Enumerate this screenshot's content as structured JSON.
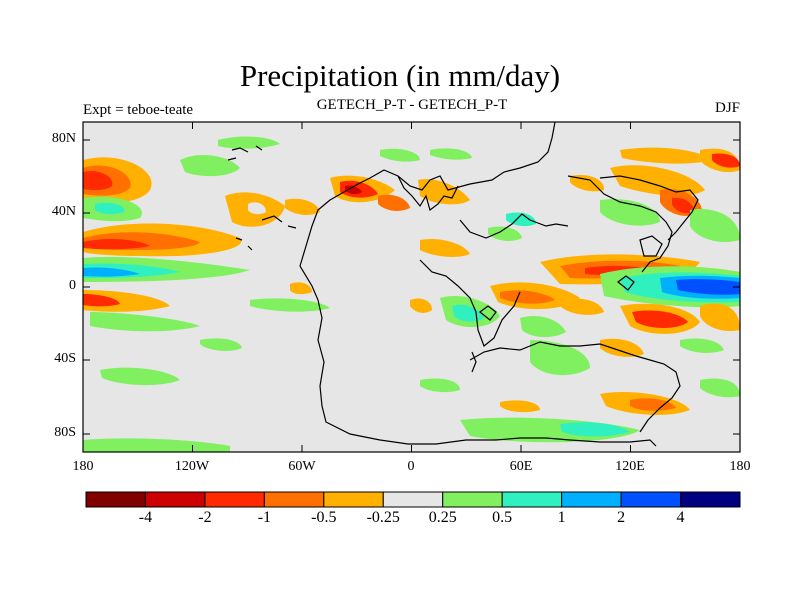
{
  "title": "Precipitation (in mm/day)",
  "left_label": "Expt = teboe-teate",
  "center_label": "GETECH_P-T - GETECH_P-T",
  "right_label": "DJF",
  "map": {
    "background_color": "#e6e6e6",
    "lat_ticks": [
      "80N",
      "40N",
      "0",
      "40S",
      "80S"
    ],
    "lon_ticks": [
      "180",
      "120W",
      "60W",
      "0",
      "60E",
      "120E",
      "180"
    ]
  },
  "colorbar": {
    "colors": [
      "#800000",
      "#cc0000",
      "#ff2a00",
      "#ff7000",
      "#ffb000",
      "#e6e6e6",
      "#80f060",
      "#30f0c0",
      "#00b0ff",
      "#0050ff",
      "#000080"
    ],
    "labels": [
      "-4",
      "-2",
      "-1",
      "-0.5",
      "-0.25",
      "0.25",
      "0.5",
      "1",
      "2",
      "4"
    ]
  }
}
